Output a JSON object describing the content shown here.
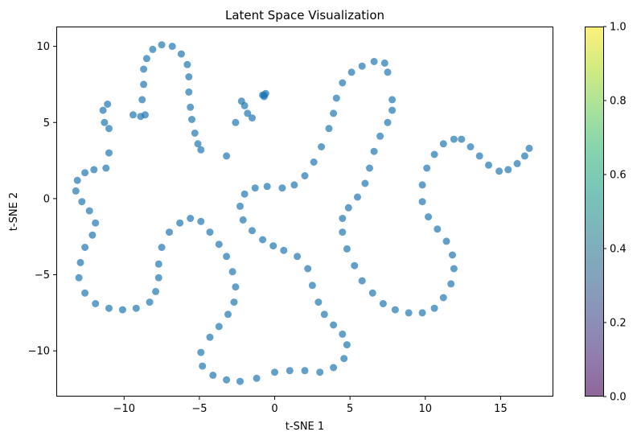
{
  "chart_data": {
    "type": "scatter",
    "title": "Latent Space Visualization",
    "xlabel": "t-SNE 1",
    "ylabel": "t-SNE 2",
    "xlim": [
      -14.5,
      18.5
    ],
    "ylim": [
      -13,
      11.3
    ],
    "xticks": [
      -10,
      -5,
      0,
      5,
      10,
      15
    ],
    "yticks": [
      -10,
      -5,
      0,
      5,
      10
    ],
    "xtick_labels": [
      "−10",
      "−5",
      "0",
      "5",
      "10",
      "15"
    ],
    "ytick_labels": [
      "−10",
      "−5",
      "0",
      "5",
      "10"
    ],
    "grid": false,
    "point_color": "#1f77b4",
    "point_alpha": 0.7,
    "colorbar": {
      "colormap": "viridis",
      "alpha": 0.6,
      "range": [
        0.0,
        1.0
      ],
      "ticks": [
        0.0,
        0.2,
        0.4,
        0.6,
        0.8,
        1.0
      ],
      "tick_labels": [
        "0.0",
        "0.2",
        "0.4",
        "0.6",
        "0.8",
        "1.0"
      ],
      "gradient_stops": [
        "#440154",
        "#482878",
        "#3e4989",
        "#31688e",
        "#26828e",
        "#1f9e89",
        "#35b779",
        "#6ece58",
        "#b5de2b",
        "#fde725"
      ]
    },
    "series": [
      {
        "points": [
          [
            -8.6,
            5.5
          ],
          [
            -8.8,
            6.5
          ],
          [
            -8.7,
            7.5
          ],
          [
            -8.7,
            8.5
          ],
          [
            -8.5,
            9.2
          ],
          [
            -8.1,
            9.8
          ],
          [
            -7.5,
            10.1
          ],
          [
            -6.8,
            10.0
          ],
          [
            -6.2,
            9.5
          ],
          [
            -5.8,
            8.8
          ],
          [
            -5.7,
            8.0
          ],
          [
            -5.7,
            7.0
          ],
          [
            -5.6,
            6.0
          ],
          [
            -5.5,
            5.2
          ],
          [
            -5.3,
            4.3
          ],
          [
            -5.1,
            3.6
          ],
          [
            -4.9,
            3.2
          ],
          [
            -9.4,
            5.5
          ],
          [
            -8.9,
            5.4
          ],
          [
            -11.0,
            3.0
          ],
          [
            -11.2,
            2.0
          ],
          [
            -12.0,
            1.9
          ],
          [
            -12.6,
            1.7
          ],
          [
            -13.1,
            1.2
          ],
          [
            -13.2,
            0.5
          ],
          [
            -12.8,
            -0.2
          ],
          [
            -12.3,
            -0.8
          ],
          [
            -11.9,
            -1.6
          ],
          [
            -12.1,
            -2.4
          ],
          [
            -12.6,
            -3.2
          ],
          [
            -12.9,
            -4.2
          ],
          [
            -13.0,
            -5.2
          ],
          [
            -12.6,
            -6.2
          ],
          [
            -11.9,
            -6.9
          ],
          [
            -11.0,
            -7.2
          ],
          [
            -10.1,
            -7.3
          ],
          [
            -9.2,
            -7.2
          ],
          [
            -8.3,
            -6.8
          ],
          [
            -7.9,
            -6.1
          ],
          [
            -7.7,
            -5.2
          ],
          [
            -7.7,
            -4.3
          ],
          [
            -7.5,
            -3.2
          ],
          [
            -7.0,
            -2.2
          ],
          [
            -6.3,
            -1.6
          ],
          [
            -5.6,
            -1.3
          ],
          [
            -4.9,
            -1.5
          ],
          [
            -4.3,
            -2.2
          ],
          [
            -3.7,
            -3.0
          ],
          [
            -3.2,
            -3.8
          ],
          [
            -2.8,
            -4.8
          ],
          [
            -2.6,
            -5.8
          ],
          [
            -2.7,
            -6.8
          ],
          [
            -3.1,
            -7.6
          ],
          [
            -3.7,
            -8.4
          ],
          [
            -4.3,
            -9.1
          ],
          [
            -4.9,
            -10.1
          ],
          [
            -4.8,
            -11.0
          ],
          [
            -4.1,
            -11.6
          ],
          [
            -3.2,
            -11.9
          ],
          [
            -2.3,
            -12.0
          ],
          [
            -1.2,
            -11.8
          ],
          [
            0.0,
            -11.4
          ],
          [
            1.0,
            -11.3
          ],
          [
            2.0,
            -11.3
          ],
          [
            3.0,
            -11.4
          ],
          [
            3.9,
            -11.1
          ],
          [
            4.6,
            -10.5
          ],
          [
            4.8,
            -9.6
          ],
          [
            4.5,
            -8.9
          ],
          [
            3.9,
            -8.3
          ],
          [
            3.3,
            -7.6
          ],
          [
            2.9,
            -6.8
          ],
          [
            2.5,
            -5.7
          ],
          [
            2.2,
            -4.6
          ],
          [
            1.5,
            -3.8
          ],
          [
            0.6,
            -3.4
          ],
          [
            -0.1,
            -3.1
          ],
          [
            -0.8,
            -2.7
          ],
          [
            -1.5,
            -2.1
          ],
          [
            -2.1,
            -1.4
          ],
          [
            -2.3,
            -0.5
          ],
          [
            -2.0,
            0.3
          ],
          [
            -1.3,
            0.7
          ],
          [
            -0.5,
            0.8
          ],
          [
            0.5,
            0.7
          ],
          [
            1.3,
            0.9
          ],
          [
            2.0,
            1.5
          ],
          [
            2.6,
            2.4
          ],
          [
            3.1,
            3.4
          ],
          [
            3.6,
            4.6
          ],
          [
            3.9,
            5.6
          ],
          [
            4.1,
            6.6
          ],
          [
            4.5,
            7.6
          ],
          [
            5.1,
            8.3
          ],
          [
            5.8,
            8.7
          ],
          [
            6.6,
            9.0
          ],
          [
            7.3,
            8.9
          ],
          [
            7.5,
            8.3
          ],
          [
            -11.4,
            5.8
          ],
          [
            -11.1,
            6.2
          ],
          [
            -11.3,
            5.0
          ],
          [
            -11.0,
            4.6
          ],
          [
            7.8,
            6.5
          ],
          [
            7.8,
            5.8
          ],
          [
            7.5,
            5.0
          ],
          [
            7.0,
            4.1
          ],
          [
            6.6,
            3.1
          ],
          [
            6.3,
            2.0
          ],
          [
            6.0,
            1.0
          ],
          [
            5.5,
            0.1
          ],
          [
            4.9,
            -0.6
          ],
          [
            4.5,
            -1.3
          ],
          [
            4.5,
            -2.2
          ],
          [
            4.8,
            -3.3
          ],
          [
            5.3,
            -4.4
          ],
          [
            5.8,
            -5.4
          ],
          [
            6.5,
            -6.2
          ],
          [
            7.2,
            -6.9
          ],
          [
            8.0,
            -7.3
          ],
          [
            8.9,
            -7.5
          ],
          [
            9.8,
            -7.5
          ],
          [
            10.6,
            -7.2
          ],
          [
            11.2,
            -6.5
          ],
          [
            11.7,
            -5.6
          ],
          [
            11.9,
            -4.6
          ],
          [
            11.8,
            -3.7
          ],
          [
            11.4,
            -2.8
          ],
          [
            10.8,
            -2.0
          ],
          [
            10.2,
            -1.2
          ],
          [
            9.8,
            -0.2
          ],
          [
            9.8,
            0.9
          ],
          [
            10.1,
            2.0
          ],
          [
            10.6,
            2.9
          ],
          [
            11.2,
            3.6
          ],
          [
            11.9,
            3.9
          ],
          [
            12.4,
            3.9
          ],
          [
            13.0,
            3.4
          ],
          [
            13.6,
            2.8
          ],
          [
            14.2,
            2.2
          ],
          [
            14.9,
            1.8
          ],
          [
            15.5,
            1.9
          ],
          [
            16.1,
            2.3
          ],
          [
            16.6,
            2.8
          ],
          [
            16.9,
            3.3
          ],
          [
            -2.2,
            6.4
          ],
          [
            -2.0,
            6.1
          ],
          [
            -1.8,
            5.6
          ],
          [
            -1.5,
            5.3
          ],
          [
            -2.6,
            5.0
          ],
          [
            -3.2,
            2.8
          ],
          [
            -0.7,
            6.8
          ],
          [
            -0.6,
            6.9
          ],
          [
            -0.8,
            6.8
          ],
          [
            -0.7,
            6.7
          ]
        ]
      }
    ]
  }
}
